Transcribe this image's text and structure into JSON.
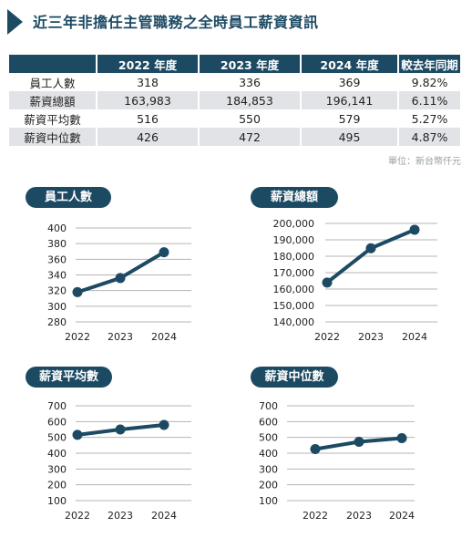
{
  "header": {
    "title": "近三年非擔任主管職務之全時員工薪資資訊",
    "icon": "triangle-arrow-icon"
  },
  "table": {
    "columns": [
      "",
      "2022 年度",
      "2023 年度",
      "2024 年度",
      "較去年同期"
    ],
    "rows": [
      [
        "員工人數",
        "318",
        "336",
        "369",
        "9.82%"
      ],
      [
        "薪資總額",
        "163,983",
        "184,853",
        "196,141",
        "6.11%"
      ],
      [
        "薪資平均數",
        "516",
        "550",
        "579",
        "5.27%"
      ],
      [
        "薪資中位數",
        "426",
        "472",
        "495",
        "4.87%"
      ]
    ]
  },
  "unit_note": "單位：新台幣仟元",
  "colors": {
    "accent": "#1d4a63",
    "grid": "#b5b5b5",
    "row_shade": "#e2e3e7"
  },
  "chart_data": [
    {
      "type": "line",
      "title": "員工人數",
      "x": [
        "2022",
        "2023",
        "2024"
      ],
      "series": [
        {
          "values": [
            318,
            336,
            369
          ]
        }
      ],
      "ylim": [
        280,
        400
      ],
      "yticks": [
        "280",
        "300",
        "320",
        "340",
        "360",
        "380",
        "400"
      ],
      "grid": true
    },
    {
      "type": "line",
      "title": "薪資總額",
      "x": [
        "2022",
        "2023",
        "2024"
      ],
      "series": [
        {
          "values": [
            163983,
            184853,
            196141
          ]
        }
      ],
      "ylim": [
        140000,
        200000
      ],
      "yticks": [
        "140,000",
        "150,000",
        "160,000",
        "170,000",
        "180,000",
        "190,000",
        "200,000"
      ],
      "grid": true
    },
    {
      "type": "line",
      "title": "薪資平均數",
      "x": [
        "2022",
        "2023",
        "2024"
      ],
      "series": [
        {
          "values": [
            516,
            550,
            579
          ]
        }
      ],
      "ylim": [
        100,
        700
      ],
      "yticks": [
        "100",
        "200",
        "300",
        "400",
        "500",
        "600",
        "700"
      ],
      "grid": true
    },
    {
      "type": "line",
      "title": "薪資中位數",
      "x": [
        "2022",
        "2023",
        "2024"
      ],
      "series": [
        {
          "values": [
            426,
            472,
            495
          ]
        }
      ],
      "ylim": [
        100,
        700
      ],
      "yticks": [
        "100",
        "200",
        "300",
        "400",
        "500",
        "600",
        "700"
      ],
      "grid": true
    }
  ]
}
